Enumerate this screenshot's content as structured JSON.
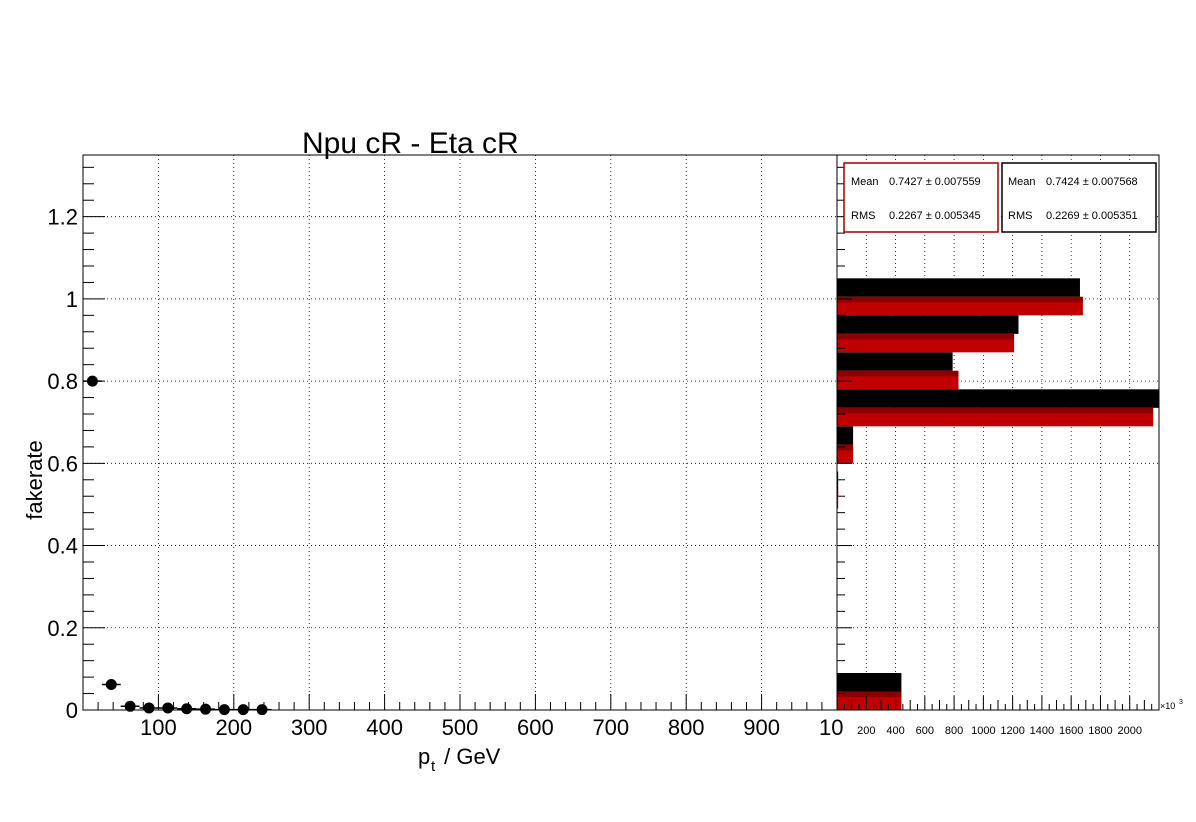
{
  "chart_data": [
    {
      "type": "scatter",
      "title": "Npu cR - Eta cR",
      "xlabel_main": "p",
      "xlabel_sub": "t",
      "xlabel_rest": " / GeV",
      "ylabel": "fakerate",
      "xlim": [
        0,
        1000
      ],
      "ylim": [
        0,
        1.35
      ],
      "grid": true,
      "x_tick_labels": [
        "100",
        "200",
        "300",
        "400",
        "500",
        "600",
        "700",
        "800",
        "900",
        "10"
      ],
      "y_tick_labels": [
        "0",
        "0.2",
        "0.4",
        "0.6",
        "0.8",
        "1",
        "1.2"
      ],
      "points": [
        {
          "x": 12.5,
          "y": 0.8,
          "xerr": 12.5,
          "yerr": 0.003
        },
        {
          "x": 37.5,
          "y": 0.062,
          "xerr": 12.5,
          "yerr": 0.004
        },
        {
          "x": 62.5,
          "y": 0.009,
          "xerr": 12.5,
          "yerr": 0.003
        },
        {
          "x": 87.5,
          "y": 0.005,
          "xerr": 12.5,
          "yerr": 0.002
        },
        {
          "x": 112.5,
          "y": 0.005,
          "xerr": 12.5,
          "yerr": 0.002
        },
        {
          "x": 137.5,
          "y": 0.003,
          "xerr": 12.5,
          "yerr": 0.002
        },
        {
          "x": 162.5,
          "y": 0.002,
          "xerr": 12.5,
          "yerr": 0.002
        },
        {
          "x": 187.5,
          "y": 0.001,
          "xerr": 12.5,
          "yerr": 0.001
        },
        {
          "x": 212.5,
          "y": 0.001,
          "xerr": 12.5,
          "yerr": 0.001
        },
        {
          "x": 237.5,
          "y": 0.001,
          "xerr": 12.5,
          "yerr": 0.001
        }
      ]
    },
    {
      "type": "bar",
      "orientation": "horizontal",
      "xlim": [
        0,
        2200
      ],
      "x_tick_labels": [
        "200",
        "400",
        "600",
        "800",
        "1000",
        "1200",
        "1400",
        "1600",
        "1800",
        "2000"
      ],
      "x_exponent_label": "×10",
      "x_exponent": "3",
      "ylim": [
        0,
        1.35
      ],
      "bin_width": 0.09,
      "series": [
        {
          "color": "#000000",
          "bins": [
            {
              "y_low": 0.0,
              "value": 440
            },
            {
              "y_low": 0.49,
              "value": 8
            },
            {
              "y_low": 0.6,
              "value": 110
            },
            {
              "y_low": 0.69,
              "value": 2200
            },
            {
              "y_low": 0.78,
              "value": 790
            },
            {
              "y_low": 0.87,
              "value": 1240
            },
            {
              "y_low": 0.96,
              "value": 1660
            }
          ]
        },
        {
          "color": "#c00000",
          "bins": [
            {
              "y_low": 0.0,
              "value": 440
            },
            {
              "y_low": 0.49,
              "value": 8
            },
            {
              "y_low": 0.6,
              "value": 110
            },
            {
              "y_low": 0.69,
              "value": 2160
            },
            {
              "y_low": 0.78,
              "value": 830
            },
            {
              "y_low": 0.87,
              "value": 1210
            },
            {
              "y_low": 0.96,
              "value": 1680
            }
          ]
        }
      ],
      "stats_boxes": [
        {
          "border": "#a00000",
          "mean_label": "Mean",
          "mean_value": "0.7427 ± 0.007559",
          "rms_label": "RMS",
          "rms_value": "0.2267 ± 0.005345"
        },
        {
          "border": "#000000",
          "mean_label": "Mean",
          "mean_value": "0.7424 ± 0.007568",
          "rms_label": "RMS",
          "rms_value": "0.2269 ± 0.005351"
        }
      ]
    }
  ]
}
